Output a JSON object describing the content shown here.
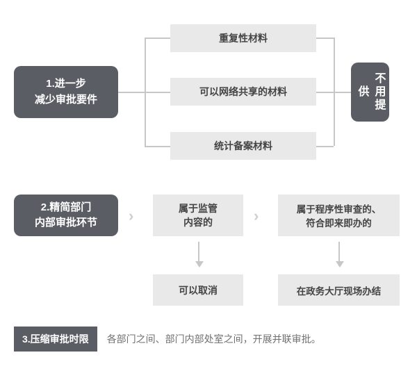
{
  "colors": {
    "dark_box_bg": "#5a5d64",
    "dark_box_text": "#ffffff",
    "light_box_bg": "#e9e9e9",
    "light_box_text": "#444444",
    "line": "#c7c7c7",
    "body_text": "#707070",
    "background": "#ffffff"
  },
  "section1": {
    "left_label": "1.进一步\n减少审批要件",
    "middle": [
      "重复性材料",
      "可以网络共享的材料",
      "统计备案材料"
    ],
    "right_label": "不用提供"
  },
  "section2": {
    "left_label": "2.精简部门\n内部审批环节",
    "mid_top": "属于监管\n内容的",
    "mid_bottom": "可以取消",
    "right_top": "属于程序性审查的、\n符合即来即办的",
    "right_bottom": "在政务大厅现场办结"
  },
  "section3": {
    "tag": "3.压缩审批时限",
    "text": "各部门之间、部门内部处室之间，开展并联审批。"
  }
}
